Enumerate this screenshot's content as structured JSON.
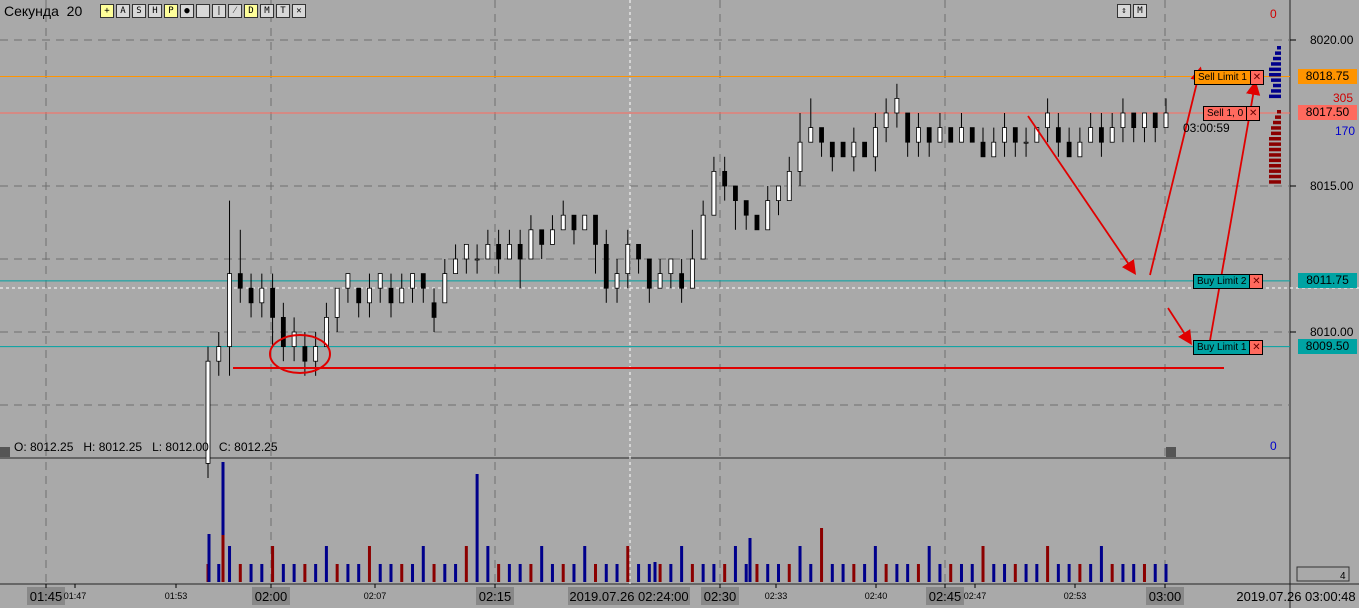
{
  "window": {
    "title": "Секунда",
    "interval": "20",
    "toolbar_buttons": [
      "+",
      "A",
      "S",
      "H",
      "P",
      "●",
      "",
      "|",
      "⁄",
      "D",
      "M",
      "T",
      "✕"
    ],
    "right_buttons": [
      "⇕",
      "M"
    ]
  },
  "ohlc_readout": {
    "o": "8012.25",
    "h": "8012.25",
    "l": "8012.00",
    "c": "8012.25",
    "text": "O: 8012.25   H: 8012.25   L: 8012.00   C: 8012.25"
  },
  "price_axis": {
    "ticks": [
      "8020.00",
      "8015.00",
      "8010.00"
    ],
    "top_zero": "0",
    "bottom_zero": "0",
    "ask_size": "305",
    "bid_size": "170",
    "volume_scale": "4"
  },
  "price_tags": [
    {
      "name": "sell-limit-1-price",
      "value": "8018.75",
      "color": "#ff9400"
    },
    {
      "name": "last-price",
      "value": "8017.50",
      "color": "#ff6a5e"
    },
    {
      "name": "buy-limit-2-price",
      "value": "8011.75",
      "color": "#00a3a3"
    },
    {
      "name": "buy-limit-1-price",
      "value": "8009.50",
      "color": "#00a3a3"
    }
  ],
  "orders": [
    {
      "name": "sell-limit-1",
      "label": "Sell Limit  1",
      "x": "✕",
      "color": "#ff9400",
      "price": 8018.75
    },
    {
      "name": "sell-position",
      "label": "Sell  1,  0",
      "x": "✕",
      "color": "#ff6a5e",
      "price": 8017.5
    },
    {
      "name": "buy-limit-2",
      "label": "Buy Limit  2",
      "x": "✕",
      "color": "#00a3a3",
      "price": 8011.75
    },
    {
      "name": "buy-limit-1",
      "label": "Buy Limit  1",
      "x": "✕",
      "color": "#00a3a3",
      "price": 8009.5
    }
  ],
  "bar_timer": "03:00:59",
  "time_axis": {
    "labels": [
      {
        "t": "01:45",
        "big": true
      },
      {
        "t": "01:47",
        "big": false
      },
      {
        "t": "01:53",
        "big": false
      },
      {
        "t": "02:00",
        "big": true
      },
      {
        "t": "02:07",
        "big": false
      },
      {
        "t": "02:15",
        "big": true
      },
      {
        "t": "02:30",
        "big": true
      },
      {
        "t": "02:33",
        "big": false
      },
      {
        "t": "02:40",
        "big": false
      },
      {
        "t": "02:45",
        "big": true
      },
      {
        "t": "02:47",
        "big": false
      },
      {
        "t": "02:53",
        "big": false
      },
      {
        "t": "03:00",
        "big": true
      }
    ],
    "crosshair_label": "2019.07.26 02:24:00",
    "current_label": "2019.07.26 03:00:48"
  },
  "colors": {
    "background": "#a9a9a9",
    "sell_limit": "#ff9400",
    "last_price": "#ff6a5e",
    "buy_limit": "#00a3a3",
    "annotation": "#e00000",
    "volume_up": "#00008b",
    "volume_down": "#8b0000"
  },
  "chart_data": {
    "type": "candlestick",
    "y_range": [
      8006,
      8021.5
    ],
    "x_range_minutes": [
      "01:43",
      "03:03"
    ],
    "candles": [
      [
        8005.5,
        8009.0,
        8005.0,
        8009.5
      ],
      [
        8009.0,
        8009.5,
        8008.5,
        8010.0
      ],
      [
        8009.5,
        8012.0,
        8008.5,
        8014.5
      ],
      [
        8012.0,
        8011.5,
        8011.0,
        8013.5
      ],
      [
        8011.5,
        8011.0,
        8010.5,
        8012.0
      ],
      [
        8011.0,
        8011.5,
        8010.5,
        8012.0
      ],
      [
        8011.5,
        8010.5,
        8009.5,
        8012.0
      ],
      [
        8010.5,
        8009.5,
        8009.0,
        8011.0
      ],
      [
        8009.5,
        8010.0,
        8009.0,
        8010.5
      ],
      [
        8009.5,
        8009.0,
        8008.5,
        8010.0
      ],
      [
        8009.0,
        8009.5,
        8008.5,
        8010.0
      ],
      [
        8009.5,
        8010.5,
        8009.5,
        8011.0
      ],
      [
        8010.5,
        8011.5,
        8010.0,
        8011.5
      ],
      [
        8011.5,
        8012.0,
        8011.0,
        8012.0
      ],
      [
        8011.5,
        8011.0,
        8010.5,
        8011.5
      ],
      [
        8011.0,
        8011.5,
        8010.5,
        8012.0
      ],
      [
        8011.5,
        8012.0,
        8011.0,
        8012.0
      ],
      [
        8011.5,
        8011.0,
        8010.5,
        8012.0
      ],
      [
        8011.0,
        8011.5,
        8011.0,
        8012.0
      ],
      [
        8011.5,
        8012.0,
        8011.0,
        8012.0
      ],
      [
        8012.0,
        8011.5,
        8011.0,
        8012.0
      ],
      [
        8011.0,
        8010.5,
        8010.0,
        8011.5
      ],
      [
        8011.0,
        8012.0,
        8011.0,
        8012.5
      ],
      [
        8012.0,
        8012.5,
        8012.0,
        8013.0
      ],
      [
        8012.5,
        8013.0,
        8012.0,
        8013.0
      ],
      [
        8012.5,
        8012.5,
        8012.0,
        8013.0
      ],
      [
        8012.5,
        8013.0,
        8012.5,
        8013.5
      ],
      [
        8013.0,
        8012.5,
        8012.0,
        8013.5
      ],
      [
        8012.5,
        8013.0,
        8012.5,
        8013.5
      ],
      [
        8013.0,
        8012.5,
        8011.5,
        8013.5
      ],
      [
        8012.5,
        8013.5,
        8012.5,
        8014.0
      ],
      [
        8013.5,
        8013.0,
        8012.5,
        8013.5
      ],
      [
        8013.0,
        8013.5,
        8013.0,
        8014.0
      ],
      [
        8013.5,
        8014.0,
        8013.5,
        8014.5
      ],
      [
        8014.0,
        8013.5,
        8013.0,
        8014.0
      ],
      [
        8013.5,
        8014.0,
        8013.5,
        8014.0
      ],
      [
        8014.0,
        8013.0,
        8012.0,
        8014.0
      ],
      [
        8013.0,
        8011.5,
        8011.0,
        8013.5
      ],
      [
        8011.5,
        8012.0,
        8011.0,
        8012.5
      ],
      [
        8012.0,
        8013.0,
        8011.5,
        8013.5
      ],
      [
        8013.0,
        8012.5,
        8012.0,
        8013.0
      ],
      [
        8012.5,
        8011.5,
        8011.0,
        8012.5
      ],
      [
        8011.5,
        8012.0,
        8011.5,
        8012.5
      ],
      [
        8012.0,
        8012.5,
        8011.5,
        8012.5
      ],
      [
        8012.0,
        8011.5,
        8011.0,
        8012.5
      ],
      [
        8011.5,
        8012.5,
        8011.5,
        8013.5
      ],
      [
        8012.5,
        8014.0,
        8012.5,
        8014.5
      ],
      [
        8014.0,
        8015.5,
        8014.0,
        8016.0
      ],
      [
        8015.5,
        8015.0,
        8014.5,
        8016.0
      ],
      [
        8015.0,
        8014.5,
        8013.5,
        8015.0
      ],
      [
        8014.5,
        8014.0,
        8013.5,
        8014.5
      ],
      [
        8014.0,
        8013.5,
        8013.5,
        8014.0
      ],
      [
        8013.5,
        8014.5,
        8013.5,
        8015.0
      ],
      [
        8014.5,
        8015.0,
        8014.0,
        8015.0
      ],
      [
        8014.5,
        8015.5,
        8014.5,
        8016.0
      ],
      [
        8015.5,
        8016.5,
        8015.0,
        8017.5
      ],
      [
        8016.5,
        8017.0,
        8016.5,
        8018.0
      ],
      [
        8017.0,
        8016.5,
        8016.0,
        8017.0
      ],
      [
        8016.5,
        8016.0,
        8015.5,
        8016.5
      ],
      [
        8016.5,
        8016.0,
        8016.0,
        8016.5
      ],
      [
        8016.0,
        8016.5,
        8015.5,
        8017.0
      ],
      [
        8016.5,
        8016.0,
        8016.0,
        8016.5
      ],
      [
        8016.0,
        8017.0,
        8015.5,
        8017.5
      ],
      [
        8017.0,
        8017.5,
        8016.5,
        8018.0
      ],
      [
        8017.5,
        8018.0,
        8017.0,
        8018.5
      ],
      [
        8017.5,
        8016.5,
        8016.0,
        8017.5
      ],
      [
        8016.5,
        8017.0,
        8016.0,
        8017.5
      ],
      [
        8017.0,
        8016.5,
        8016.0,
        8017.0
      ],
      [
        8016.5,
        8017.0,
        8016.5,
        8017.5
      ],
      [
        8017.0,
        8016.5,
        8016.5,
        8017.0
      ],
      [
        8016.5,
        8017.0,
        8016.5,
        8017.5
      ],
      [
        8017.0,
        8016.5,
        8016.5,
        8017.0
      ],
      [
        8016.5,
        8016.0,
        8016.0,
        8017.0
      ],
      [
        8016.0,
        8016.5,
        8016.0,
        8017.0
      ],
      [
        8016.5,
        8017.0,
        8016.0,
        8017.5
      ],
      [
        8017.0,
        8016.5,
        8016.0,
        8017.0
      ],
      [
        8016.5,
        8016.5,
        8016.0,
        8017.0
      ],
      [
        8016.5,
        8017.0,
        8016.5,
        8017.0
      ],
      [
        8017.0,
        8017.5,
        8016.5,
        8018.0
      ],
      [
        8017.0,
        8016.5,
        8016.0,
        8017.5
      ],
      [
        8016.5,
        8016.0,
        8016.0,
        8017.0
      ],
      [
        8016.0,
        8016.5,
        8016.0,
        8017.0
      ],
      [
        8016.5,
        8017.0,
        8016.5,
        8017.5
      ],
      [
        8017.0,
        8016.5,
        8016.0,
        8017.5
      ],
      [
        8016.5,
        8017.0,
        8016.5,
        8017.5
      ],
      [
        8017.0,
        8017.5,
        8016.5,
        8018.0
      ],
      [
        8017.5,
        8017.0,
        8016.5,
        8017.5
      ],
      [
        8017.0,
        8017.5,
        8016.5,
        8017.5
      ],
      [
        8017.5,
        8017.0,
        8016.5,
        8017.5
      ],
      [
        8017.0,
        8017.5,
        8017.0,
        8018.0
      ]
    ],
    "volume": [
      1,
      1,
      2,
      1,
      1,
      1,
      2,
      1,
      1,
      1,
      1,
      2,
      1,
      1,
      1,
      2,
      1,
      1,
      1,
      1,
      2,
      1,
      1,
      1,
      2,
      6,
      2,
      1,
      1,
      1,
      1,
      2,
      1,
      1,
      1,
      2,
      1,
      1,
      1,
      2,
      1,
      1,
      1,
      1,
      2,
      1,
      1,
      1,
      1,
      2,
      1,
      1,
      1,
      1,
      1,
      2,
      1,
      3,
      1,
      1,
      1,
      1,
      2,
      1,
      1,
      1,
      1,
      2,
      1,
      1,
      1,
      1,
      2,
      1,
      1,
      1,
      1,
      1,
      2,
      1,
      1,
      1,
      1,
      2,
      1,
      1,
      1,
      1,
      1,
      1
    ]
  }
}
